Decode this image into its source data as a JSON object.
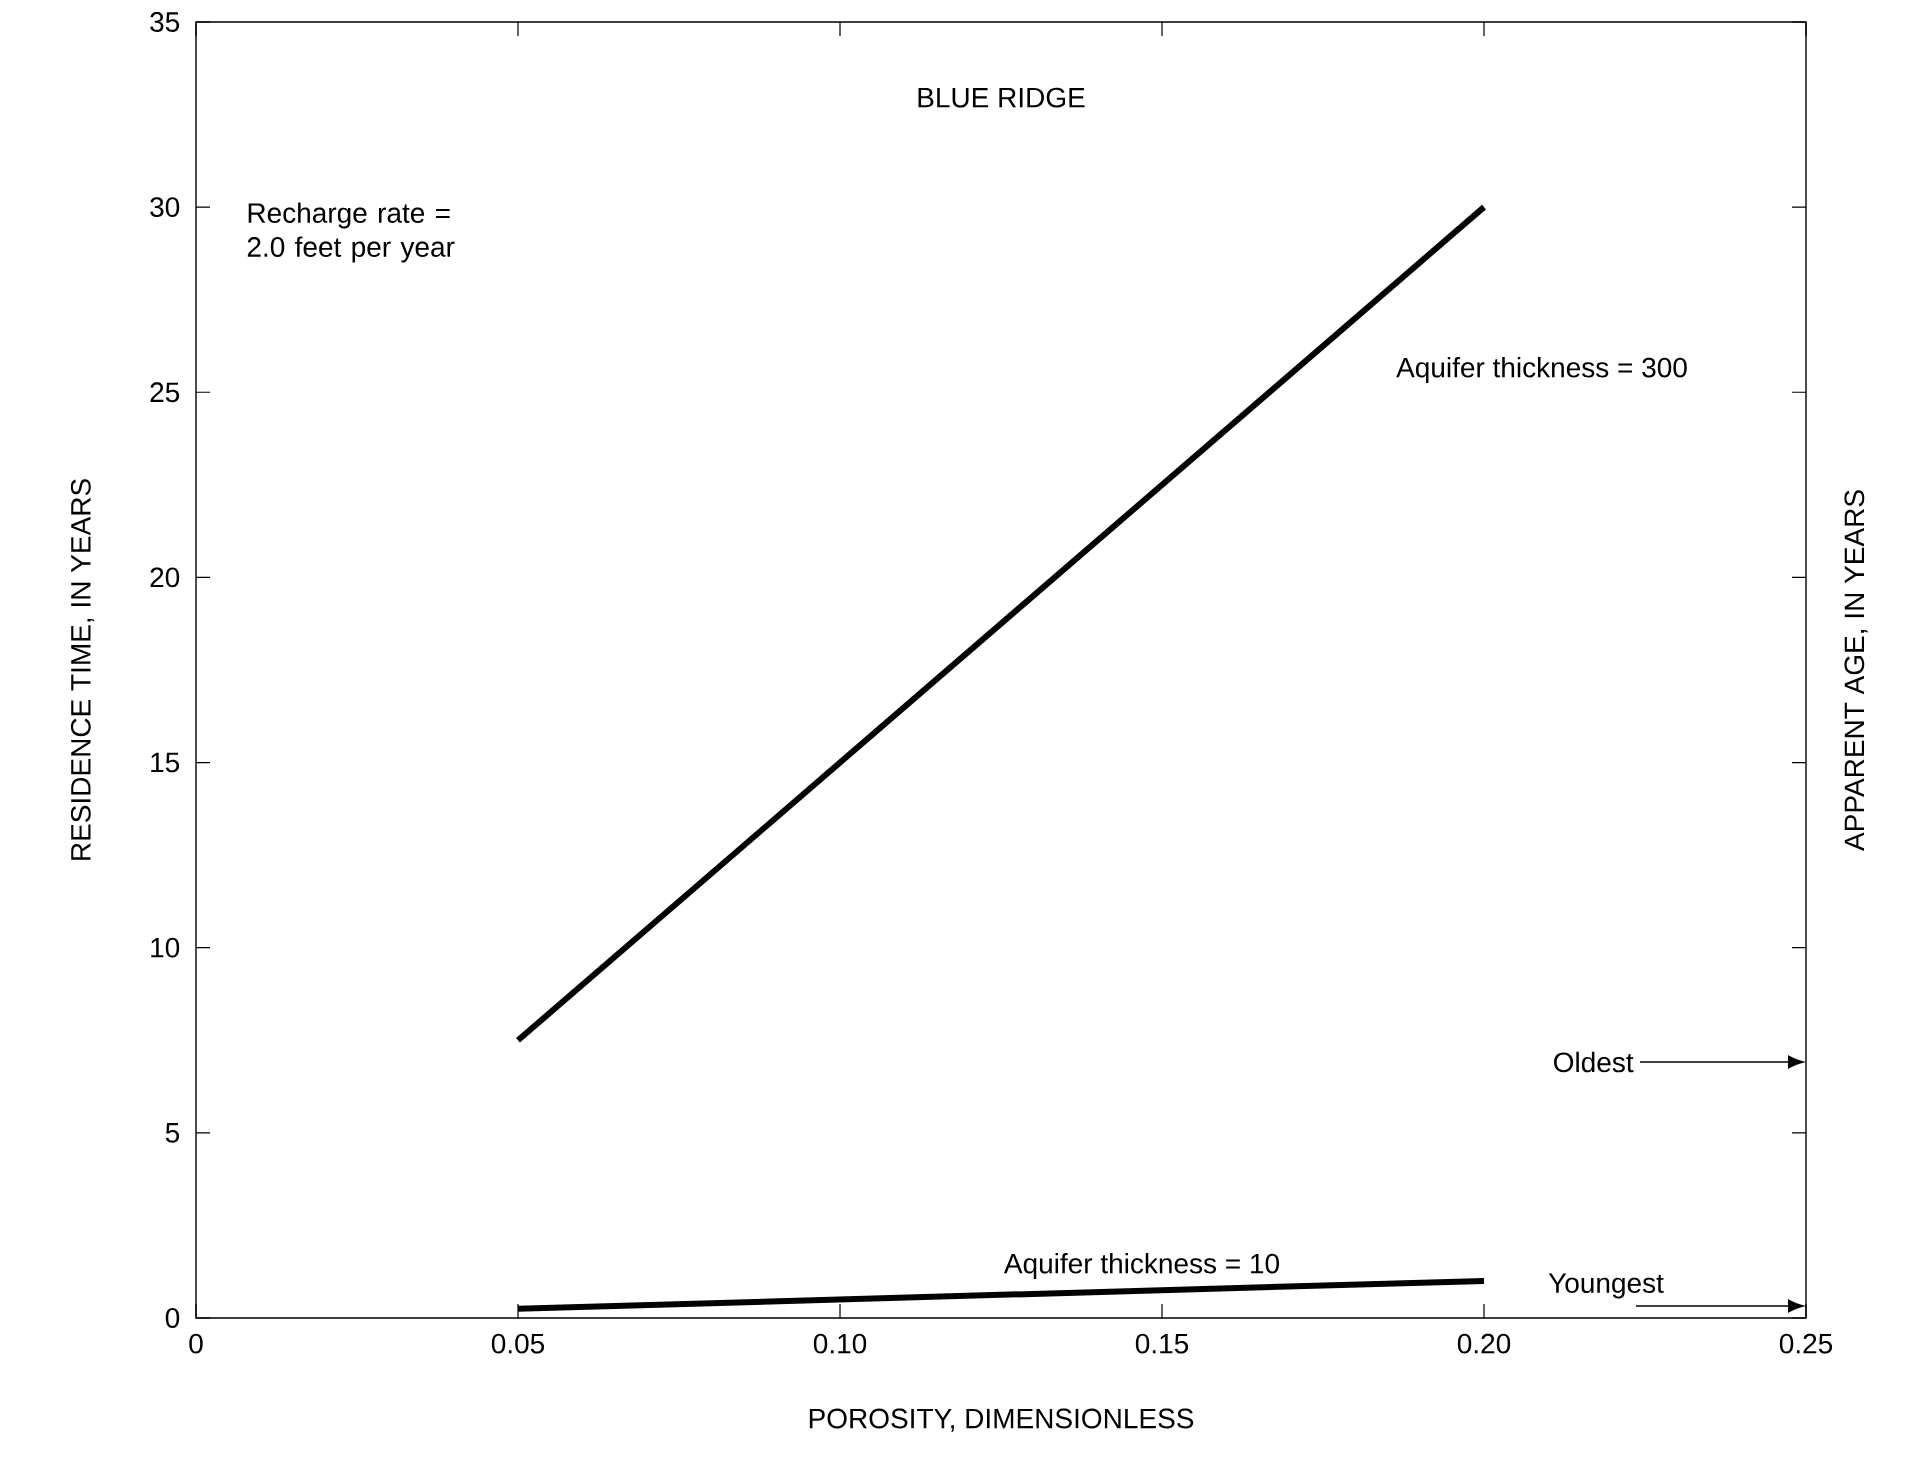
{
  "chart_data": {
    "type": "line",
    "title": "BLUE RIDGE",
    "xlabel": "POROSITY, DIMENSIONLESS",
    "ylabel": "RESIDENCE TIME, IN YEARS",
    "y2label": "APPARENT AGE, IN YEARS",
    "x": [
      0.05,
      0.2
    ],
    "series": [
      {
        "color": "#000000",
        "values": [
          7.5,
          30
        ]
      },
      {
        "color": "#000000",
        "values": [
          0.25,
          1.0
        ]
      }
    ],
    "xlim": [
      0,
      0.25
    ],
    "ylim": [
      0,
      35
    ],
    "xticks": [
      0,
      {
        "value": 0.05,
        "label": "0.05"
      },
      {
        "value": 0.1,
        "label": "0.10"
      },
      {
        "value": 0.15,
        "label": "0.15"
      },
      {
        "value": 0.2,
        "label": "0.20"
      },
      {
        "value": 0.25,
        "label": "0.25"
      }
    ],
    "yticks": [
      0,
      5,
      10,
      15,
      20,
      25,
      30,
      35
    ],
    "grid": false,
    "annotations": [
      "Recharge rate = 2.0 feet per year",
      "Aquifer thickness = 300",
      "Aquifer thickness = 10",
      "Oldest",
      "Youngest"
    ]
  }
}
